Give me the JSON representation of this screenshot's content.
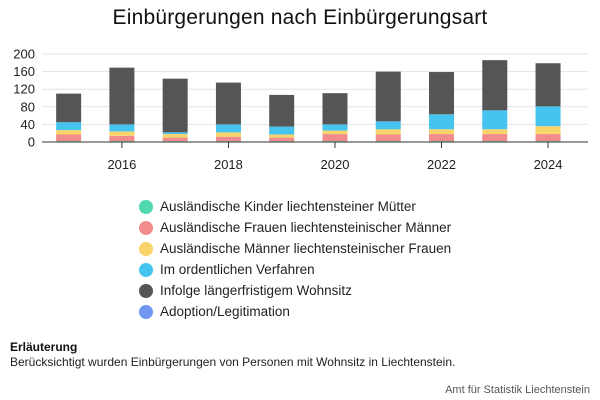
{
  "chart_data": {
    "type": "bar",
    "stacked": true,
    "title": "Einbürgerungen nach Einbürgerungsart",
    "x": [
      2015,
      2016,
      2017,
      2018,
      2019,
      2020,
      2021,
      2022,
      2023,
      2024
    ],
    "x_ticks": [
      "2016",
      "2018",
      "2020",
      "2022",
      "2024"
    ],
    "y_ticks": [
      "0",
      "40",
      "80",
      "120",
      "160",
      "200"
    ],
    "ylim": [
      0,
      200
    ],
    "grid": true,
    "legend_position": "bottom",
    "series": [
      {
        "name": "Ausländische Kinder liechtensteiner Mütter",
        "color": "#4fd8b0",
        "values": [
          2,
          2,
          2,
          2,
          2,
          2,
          2,
          2,
          2,
          2
        ]
      },
      {
        "name": "Ausländische Frauen liechtensteinischer Männer",
        "color": "#f28b8b",
        "values": [
          15,
          12,
          8,
          10,
          8,
          16,
          15,
          16,
          16,
          16
        ]
      },
      {
        "name": "Ausländische Männer liechtensteinischer Frauen",
        "color": "#f8d46a",
        "values": [
          10,
          10,
          8,
          10,
          7,
          8,
          12,
          11,
          11,
          18
        ]
      },
      {
        "name": "Im ordentlichen Verfahren",
        "color": "#45c4ef",
        "values": [
          18,
          16,
          4,
          18,
          18,
          14,
          18,
          34,
          43,
          45
        ]
      },
      {
        "name": "Infolge längerfristigem Wohnsitz",
        "color": "#555555",
        "values": [
          65,
          129,
          122,
          95,
          72,
          71,
          113,
          96,
          114,
          98
        ]
      },
      {
        "name": "Adoption/Legitimation",
        "color": "#6f96f2",
        "values": [
          0,
          0,
          0,
          0,
          0,
          0,
          0,
          0,
          0,
          0
        ]
      }
    ]
  },
  "note": {
    "heading": "Erläuterung",
    "text": "Berücksichtigt wurden Einbürgerungen von Personen mit Wohnsitz in Liechtenstein."
  },
  "source": "Amt für Statistik Liechtenstein"
}
